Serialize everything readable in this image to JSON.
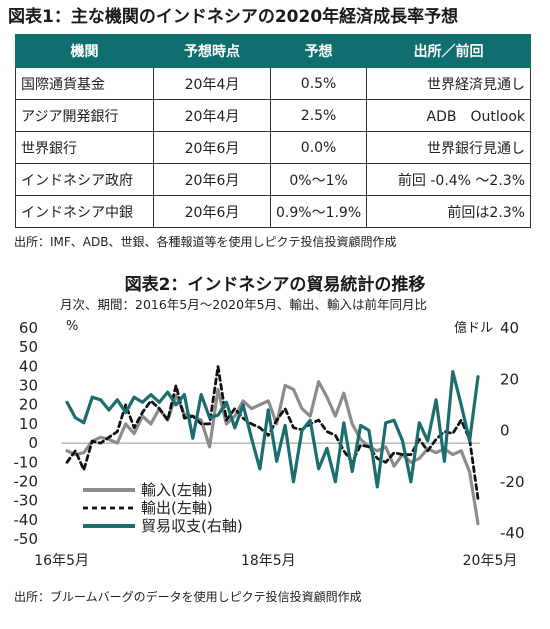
{
  "table1": {
    "title": "図表1：主な機関のインドネシアの2020年経済成長率予想",
    "headers": [
      "機関",
      "予想時点",
      "予想",
      "出所／前回"
    ],
    "rows": [
      [
        "国際通貨基金",
        "20年4月",
        "0.5%",
        "世界経済見通し"
      ],
      [
        "アジア開発銀行",
        "20年4月",
        "2.5%",
        "ADB　Outlook"
      ],
      [
        "世界銀行",
        "20年6月",
        "0.0%",
        "世界銀行見通し"
      ],
      [
        "インドネシア政府",
        "20年6月",
        "0%～1%",
        "前回 -0.4% ～2.3%"
      ],
      [
        "インドネシア中銀",
        "20年6月",
        "0.9%～1.9%",
        "前回は2.3%"
      ]
    ],
    "source": "出所：IMF、ADB、世銀、各種報道等を使用しピクテ投信投資顧問作成"
  },
  "chart_data": {
    "type": "line",
    "title": "図表2：インドネシアの貿易統計の推移",
    "subtitle": "月次、期間：2016年5月～2020年5月、輸出、輸入は前年同月比",
    "left_unit": "%",
    "right_unit": "億ドル",
    "left_ylim": [
      -50,
      60
    ],
    "left_ticks": [
      "60",
      "50",
      "40",
      "30",
      "20",
      "10",
      "0",
      "-10",
      "-20",
      "-30",
      "-40",
      "-50"
    ],
    "right_ylim": [
      -40,
      40
    ],
    "right_ticks": [
      "40",
      "20",
      "0",
      "-20",
      "-40"
    ],
    "x_start": "2016-05",
    "x_end": "2020-05",
    "x_tick_labels": [
      "16年5月",
      "18年5月",
      "20年5月"
    ],
    "series": [
      {
        "name": "輸入(左軸)",
        "axis": "left",
        "color": "#8c8c8c",
        "style": "solid",
        "values": [
          -4,
          -6,
          -5,
          1,
          3,
          2,
          0,
          10,
          5,
          14,
          10,
          18,
          12,
          25,
          15,
          14,
          12,
          -2,
          28,
          10,
          14,
          22,
          18,
          20,
          22,
          10,
          30,
          28,
          18,
          14,
          32,
          24,
          14,
          26,
          10,
          2,
          -2,
          -4,
          -2,
          -12,
          -6,
          -10,
          -8,
          -3,
          -5,
          -3,
          -6,
          -4,
          -15,
          -42
        ]
      },
      {
        "name": "輸出(左軸)",
        "axis": "left",
        "color": "#111111",
        "style": "dashed",
        "values": [
          -10,
          -4,
          -14,
          1,
          0,
          3,
          6,
          20,
          8,
          16,
          22,
          18,
          12,
          30,
          13,
          14,
          10,
          10,
          40,
          12,
          18,
          13,
          10,
          8,
          4,
          12,
          18,
          8,
          7,
          10,
          12,
          6,
          4,
          -4,
          -10,
          -1,
          -2,
          -8,
          -10,
          -5,
          -6,
          -6,
          2,
          -4,
          2,
          6,
          5,
          12,
          2,
          -29
        ]
      },
      {
        "name": "貿易収支(右軸)",
        "axis": "right",
        "color": "#1c6e6e",
        "style": "solid",
        "values": [
          11,
          5,
          3,
          13,
          12,
          8,
          12,
          7,
          13,
          11,
          14,
          11,
          15,
          10,
          14,
          -3,
          14,
          5,
          6,
          11,
          1,
          10,
          -3,
          -15,
          8,
          -12,
          2,
          -20,
          0,
          4,
          -15,
          -7,
          -20,
          3,
          -16,
          2,
          0,
          -22,
          3,
          4,
          -4,
          -20,
          3,
          -4,
          12,
          -12,
          23,
          10,
          -4,
          21
        ]
      }
    ]
  },
  "source2": "出所：ブルームバーグのデータを使用しピクテ投信投資顧問作成"
}
